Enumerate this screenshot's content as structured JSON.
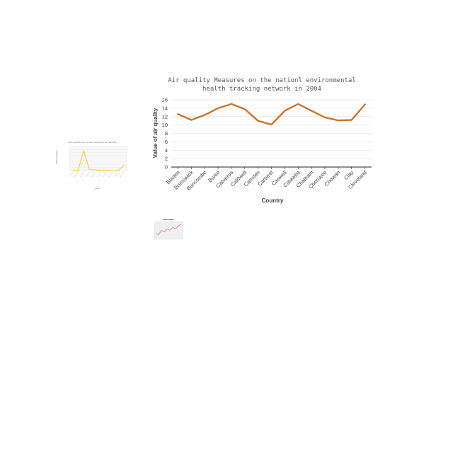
{
  "chart_data": [
    {
      "type": "line",
      "title": "Air quality Measures on the nationl environmental health tracking network in 2004",
      "title_lines": [
        "Air quality Measures on the nationl environmental",
        "health tracking network in 2004"
      ],
      "xlabel": "Country",
      "ylabel": "Value of air quality",
      "categories": [
        "Bladen",
        "Brunswick",
        "Buncombe",
        "Burke",
        "Cabarrus",
        "Caldwell",
        "Camden",
        "Carteret",
        "Caswell",
        "Catawba",
        "Chatham",
        "Cherokee",
        "Chowan",
        "Clay",
        "Cleveland"
      ],
      "values": [
        12.6,
        11.2,
        12.4,
        14.0,
        15.0,
        13.8,
        11.0,
        10.1,
        13.4,
        15.0,
        13.4,
        11.8,
        11.1,
        11.2,
        14.9
      ],
      "ylim": [
        0,
        16
      ],
      "yticks": [
        0,
        2,
        4,
        6,
        8,
        10,
        12,
        14,
        16
      ],
      "grid": "horizontal",
      "line_color": "#c77430"
    },
    {
      "type": "line",
      "title": "Urban population living in slums projected for the Year 2018",
      "ylabel": "Urban population",
      "xlabel": "Country",
      "values": [
        0,
        0,
        45,
        2,
        2,
        1,
        1,
        0,
        0,
        12
      ],
      "ylim": [
        0,
        55
      ],
      "line_color": "#f2c418"
    },
    {
      "type": "line",
      "title": "",
      "values": [
        3,
        2,
        5,
        4,
        6,
        5,
        7,
        6,
        8,
        9
      ],
      "line_color": "#d66a8a"
    }
  ]
}
